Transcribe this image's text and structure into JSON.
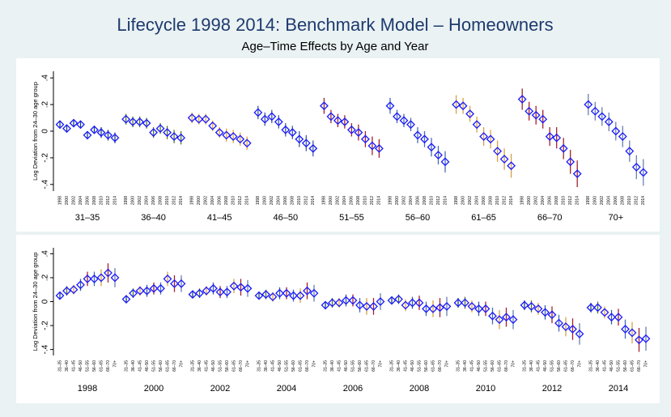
{
  "chart_data": [
    {
      "type": "errorbar",
      "title": "Lifecycle 1998 2014: Benchmark Model – Homeowners",
      "subtitle": "Age–Time Effects by Age and Year",
      "y_label": "Log Deviation from 24–30 age group",
      "categories": [
        "1998",
        "2000",
        "2002",
        "2004",
        "2006",
        "2008",
        "2010",
        "2012",
        "2014"
      ],
      "series": [
        {
          "name": "31–35",
          "values": [
            0.05,
            0.02,
            0.06,
            0.05,
            -0.03,
            0.01,
            -0.01,
            -0.03,
            -0.05
          ],
          "errors": [
            0.03,
            0.03,
            0.03,
            0.03,
            0.03,
            0.03,
            0.04,
            0.04,
            0.04
          ]
        },
        {
          "name": "36–40",
          "values": [
            0.09,
            0.07,
            0.07,
            0.06,
            -0.01,
            0.02,
            -0.01,
            -0.04,
            -0.05
          ],
          "errors": [
            0.04,
            0.04,
            0.04,
            0.04,
            0.04,
            0.04,
            0.05,
            0.05,
            0.05
          ]
        },
        {
          "name": "41–45",
          "values": [
            0.1,
            0.09,
            0.09,
            0.04,
            -0.01,
            -0.03,
            -0.04,
            -0.06,
            -0.09
          ],
          "errors": [
            0.04,
            0.04,
            0.04,
            0.04,
            0.04,
            0.05,
            0.05,
            0.05,
            0.05
          ]
        },
        {
          "name": "46–50",
          "values": [
            0.14,
            0.09,
            0.11,
            0.07,
            0.01,
            -0.01,
            -0.06,
            -0.09,
            -0.13
          ],
          "errors": [
            0.05,
            0.05,
            0.05,
            0.05,
            0.05,
            0.05,
            0.06,
            0.06,
            0.06
          ]
        },
        {
          "name": "51–55",
          "values": [
            0.19,
            0.11,
            0.08,
            0.07,
            0.01,
            -0.01,
            -0.06,
            -0.11,
            -0.13
          ],
          "errors": [
            0.06,
            0.05,
            0.05,
            0.05,
            0.05,
            0.06,
            0.06,
            0.07,
            0.07
          ]
        },
        {
          "name": "56–60",
          "values": [
            0.19,
            0.11,
            0.08,
            0.05,
            -0.03,
            -0.06,
            -0.12,
            -0.18,
            -0.23
          ],
          "errors": [
            0.06,
            0.05,
            0.05,
            0.05,
            0.06,
            0.06,
            0.07,
            0.07,
            0.08
          ]
        },
        {
          "name": "61–65",
          "values": [
            0.2,
            0.19,
            0.13,
            0.05,
            -0.04,
            -0.06,
            -0.15,
            -0.21,
            -0.26
          ],
          "errors": [
            0.07,
            0.06,
            0.06,
            0.06,
            0.07,
            0.07,
            0.08,
            0.08,
            0.09
          ]
        },
        {
          "name": "66–70",
          "values": [
            0.24,
            0.15,
            0.12,
            0.09,
            -0.04,
            -0.05,
            -0.13,
            -0.23,
            -0.32
          ],
          "errors": [
            0.08,
            0.07,
            0.07,
            0.07,
            0.07,
            0.08,
            0.08,
            0.09,
            0.1
          ]
        },
        {
          "name": "70+",
          "values": [
            0.2,
            0.15,
            0.11,
            0.07,
            0,
            -0.04,
            -0.15,
            -0.27,
            -0.31
          ],
          "errors": [
            0.08,
            0.07,
            0.07,
            0.07,
            0.07,
            0.08,
            0.08,
            0.09,
            0.1
          ]
        }
      ],
      "color_by": "group",
      "bar_colors": [
        "#1a476f",
        "#55752f",
        "#e8a33d",
        "#3e5e9c",
        "#a0232d",
        "#4a6ab8",
        "#d6a046",
        "#a0232d",
        "#6a7fb0"
      ],
      "marker_color": "#1a1aff",
      "ylim": [
        -0.45,
        0.45
      ],
      "yticks": [
        {
          "value": -0.4,
          "label": "-.4"
        },
        {
          "value": -0.2,
          "label": "-.2"
        },
        0,
        {
          "value": 0.2,
          "label": ".2"
        },
        {
          "value": 0.4,
          "label": ".4"
        }
      ]
    },
    {
      "type": "errorbar",
      "y_label": "Log Deviation from 24–30 age group",
      "categories": [
        "31–35",
        "36–40",
        "41–45",
        "46–50",
        "51–55",
        "56–60",
        "61–65",
        "66–70",
        "70+"
      ],
      "series": [
        {
          "name": "1998",
          "values": [
            0.05,
            0.09,
            0.1,
            0.14,
            0.19,
            0.19,
            0.2,
            0.24,
            0.2
          ],
          "errors": [
            0.03,
            0.04,
            0.04,
            0.05,
            0.06,
            0.06,
            0.07,
            0.08,
            0.08
          ]
        },
        {
          "name": "2000",
          "values": [
            0.02,
            0.07,
            0.09,
            0.09,
            0.11,
            0.11,
            0.19,
            0.15,
            0.15
          ],
          "errors": [
            0.03,
            0.04,
            0.04,
            0.05,
            0.05,
            0.05,
            0.06,
            0.07,
            0.07
          ]
        },
        {
          "name": "2002",
          "values": [
            0.06,
            0.07,
            0.09,
            0.11,
            0.08,
            0.08,
            0.13,
            0.12,
            0.11
          ],
          "errors": [
            0.03,
            0.04,
            0.04,
            0.05,
            0.05,
            0.05,
            0.06,
            0.07,
            0.07
          ]
        },
        {
          "name": "2004",
          "values": [
            0.05,
            0.06,
            0.04,
            0.07,
            0.07,
            0.05,
            0.05,
            0.09,
            0.07
          ],
          "errors": [
            0.03,
            0.04,
            0.04,
            0.05,
            0.05,
            0.05,
            0.06,
            0.07,
            0.07
          ]
        },
        {
          "name": "2006",
          "values": [
            -0.03,
            -0.01,
            -0.01,
            0.01,
            0.01,
            -0.03,
            -0.04,
            -0.04,
            0
          ],
          "errors": [
            0.03,
            0.04,
            0.04,
            0.05,
            0.05,
            0.06,
            0.07,
            0.07,
            0.07
          ]
        },
        {
          "name": "2008",
          "values": [
            0.01,
            0.02,
            -0.03,
            -0.01,
            -0.01,
            -0.06,
            -0.06,
            -0.05,
            -0.04
          ],
          "errors": [
            0.03,
            0.04,
            0.05,
            0.05,
            0.06,
            0.06,
            0.07,
            0.08,
            0.08
          ]
        },
        {
          "name": "2010",
          "values": [
            -0.01,
            -0.01,
            -0.04,
            -0.06,
            -0.06,
            -0.12,
            -0.15,
            -0.13,
            -0.15
          ],
          "errors": [
            0.04,
            0.05,
            0.05,
            0.06,
            0.06,
            0.07,
            0.08,
            0.08,
            0.08
          ]
        },
        {
          "name": "2012",
          "values": [
            -0.03,
            -0.04,
            -0.06,
            -0.09,
            -0.11,
            -0.18,
            -0.21,
            -0.23,
            -0.27
          ],
          "errors": [
            0.04,
            0.05,
            0.05,
            0.06,
            0.07,
            0.07,
            0.08,
            0.09,
            0.09
          ]
        },
        {
          "name": "2014",
          "values": [
            -0.05,
            -0.05,
            -0.09,
            -0.13,
            -0.13,
            -0.23,
            -0.26,
            -0.32,
            -0.31
          ],
          "errors": [
            0.04,
            0.05,
            0.05,
            0.06,
            0.07,
            0.08,
            0.09,
            0.1,
            0.1
          ]
        }
      ],
      "color_by": "category",
      "bar_colors": [
        "#1a476f",
        "#55752f",
        "#e8a33d",
        "#3e5e9c",
        "#a0232d",
        "#4a6ab8",
        "#d6a046",
        "#a0232d",
        "#6a7fb0"
      ],
      "marker_color": "#1a1aff",
      "ylim": [
        -0.45,
        0.45
      ],
      "yticks": [
        {
          "value": -0.4,
          "label": "-.4"
        },
        {
          "value": -0.2,
          "label": "-.2"
        },
        0,
        {
          "value": 0.2,
          "label": ".2"
        },
        {
          "value": 0.4,
          "label": ".4"
        }
      ]
    }
  ]
}
